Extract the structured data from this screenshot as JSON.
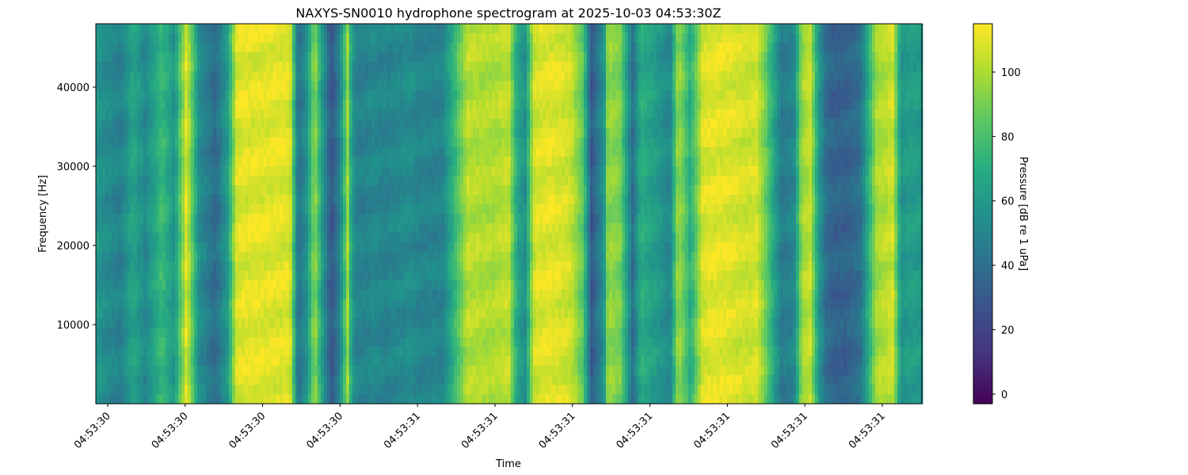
{
  "chart_data": {
    "type": "heatmap",
    "title": "NAXYS-SN0010 hydrophone spectrogram at 2025-10-03 04:53:30Z",
    "xlabel": "Time",
    "ylabel": "Frequency [Hz]",
    "colorbar_label": "Pressure [dB re 1 uPa]",
    "colormap": "viridis",
    "ylim": [
      0,
      48000
    ],
    "y_ticks": [
      10000,
      20000,
      30000,
      40000
    ],
    "x_tick_labels": [
      "04:53:30",
      "04:53:30",
      "04:53:30",
      "04:53:30",
      "04:53:31",
      "04:53:31",
      "04:53:31",
      "04:53:31",
      "04:53:31",
      "04:53:31",
      "04:53:31"
    ],
    "colorbar_range": [
      -3,
      115
    ],
    "colorbar_ticks": [
      0,
      20,
      40,
      60,
      80,
      100
    ],
    "band_profile": {
      "description_units": "column position as fraction of time axis, level in dB",
      "x": [
        0.0,
        0.03,
        0.045,
        0.06,
        0.08,
        0.095,
        0.11,
        0.125,
        0.145,
        0.16,
        0.17,
        0.18,
        0.195,
        0.21,
        0.235,
        0.245,
        0.255,
        0.265,
        0.275,
        0.285,
        0.295,
        0.305,
        0.31,
        0.315,
        0.325,
        0.335,
        0.345,
        0.355,
        0.37,
        0.38,
        0.39,
        0.42,
        0.45,
        0.48,
        0.5,
        0.51,
        0.52,
        0.53,
        0.54,
        0.555,
        0.575,
        0.59,
        0.6,
        0.615,
        0.62,
        0.635,
        0.65,
        0.66,
        0.68,
        0.695,
        0.705,
        0.72,
        0.735,
        0.745,
        0.76,
        0.775,
        0.79,
        0.8,
        0.81,
        0.83,
        0.845,
        0.855,
        0.865,
        0.875,
        0.885,
        0.895,
        0.91,
        0.925,
        0.945,
        0.965,
        0.975,
        0.985,
        1.0
      ],
      "level": [
        58,
        48,
        66,
        52,
        76,
        58,
        110,
        54,
        38,
        62,
        108,
        110,
        110,
        110,
        110,
        40,
        56,
        96,
        58,
        28,
        48,
        96,
        60,
        50,
        48,
        52,
        50,
        50,
        52,
        54,
        50,
        50,
        102,
        100,
        104,
        66,
        56,
        106,
        110,
        110,
        106,
        84,
        30,
        56,
        96,
        90,
        40,
        70,
        60,
        50,
        98,
        70,
        108,
        110,
        110,
        108,
        106,
        108,
        90,
        46,
        50,
        98,
        104,
        60,
        38,
        34,
        34,
        40,
        98,
        106,
        58,
        62,
        60
      ]
    }
  }
}
